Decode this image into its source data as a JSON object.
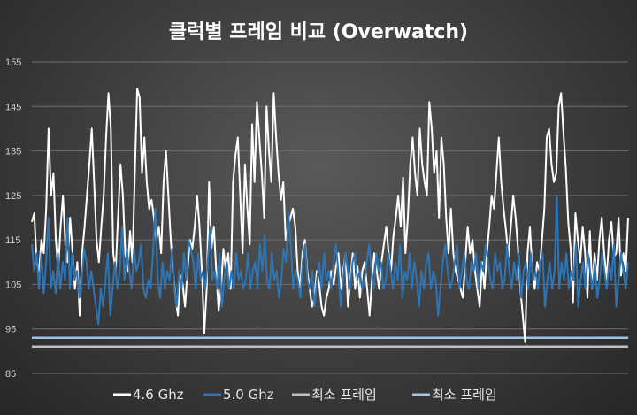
{
  "chart_data": {
    "type": "line",
    "title": "클럭별 프레임 비교 (Overwatch)",
    "xlabel": "",
    "ylabel": "",
    "ylim": [
      85,
      155
    ],
    "yticks": [
      85,
      95,
      105,
      115,
      125,
      135,
      145,
      155
    ],
    "grid": true,
    "legend_position": "bottom",
    "series": [
      {
        "name": "4.6 Ghz",
        "color": "#ffffff",
        "values": [
          119,
          121,
          110,
          108,
          115,
          112,
          122,
          140,
          125,
          130,
          115,
          108,
          118,
          125,
          114,
          110,
          120,
          112,
          104,
          110,
          98,
          112,
          118,
          125,
          132,
          140,
          128,
          115,
          110,
          118,
          125,
          138,
          148,
          140,
          112,
          108,
          120,
          132,
          125,
          112,
          108,
          117,
          110,
          130,
          149,
          147,
          130,
          138,
          128,
          122,
          124,
          120,
          115,
          118,
          112,
          128,
          135,
          125,
          115,
          108,
          102,
          98,
          107,
          105,
          100,
          108,
          115,
          113,
          118,
          125,
          118,
          108,
          94,
          104,
          128,
          113,
          118,
          108,
          99,
          104,
          113,
          108,
          112,
          104,
          128,
          134,
          138,
          125,
          112,
          132,
          122,
          114,
          141,
          128,
          146,
          138,
          130,
          120,
          145,
          135,
          128,
          148,
          138,
          130,
          124,
          128,
          115,
          118,
          120,
          122,
          118,
          108,
          104,
          112,
          115,
          108,
          104,
          100,
          102,
          108,
          105,
          100,
          98,
          102,
          104,
          108,
          105,
          109,
          112,
          104,
          108,
          112,
          100,
          106,
          112,
          104,
          109,
          102,
          108,
          110,
          104,
          98,
          106,
          112,
          108,
          104,
          110,
          114,
          118,
          112,
          108,
          116,
          120,
          125,
          118,
          129,
          112,
          120,
          132,
          138,
          130,
          125,
          140,
          132,
          128,
          125,
          146,
          140,
          130,
          135,
          120,
          138,
          132,
          120,
          112,
          122,
          112,
          108,
          106,
          104,
          102,
          110,
          118,
          112,
          115,
          108,
          104,
          100,
          110,
          104,
          112,
          118,
          125,
          122,
          130,
          138,
          128,
          122,
          117,
          111,
          118,
          125,
          120,
          113,
          104,
          98,
          92,
          112,
          118,
          108,
          104,
          110,
          108,
          115,
          122,
          138,
          140,
          132,
          128,
          130,
          145,
          148,
          139,
          131,
          119,
          113,
          101,
          121,
          115,
          110,
          118,
          112,
          102,
          117,
          104,
          112,
          106,
          115,
          120,
          112,
          106,
          115,
          119,
          111,
          112,
          120,
          107,
          112,
          108,
          120
        ],
        "note_shape": "approx"
      },
      {
        "name": "5.0 Ghz",
        "color": "#2e75b6",
        "values": [
          114,
          108,
          112,
          104,
          112,
          103,
          110,
          120,
          104,
          108,
          103,
          112,
          104,
          110,
          106,
          120,
          104,
          112,
          106,
          108,
          102,
          106,
          113,
          110,
          104,
          108,
          104,
          100,
          96,
          104,
          100,
          106,
          112,
          98,
          104,
          110,
          104,
          108,
          118,
          106,
          113,
          108,
          104,
          113,
          108,
          110,
          114,
          104,
          102,
          106,
          104,
          112,
          122,
          106,
          102,
          110,
          104,
          108,
          106,
          113,
          104,
          100,
          108,
          104,
          112,
          106,
          115,
          113,
          110,
          104,
          112,
          106,
          108,
          104,
          110,
          118,
          106,
          108,
          104,
          112,
          100,
          106,
          110,
          104,
          108,
          104,
          112,
          106,
          108,
          104,
          106,
          112,
          104,
          108,
          110,
          104,
          114,
          108,
          116,
          106,
          104,
          112,
          106,
          108,
          102,
          106,
          113,
          110,
          121,
          114,
          104,
          108,
          106,
          102,
          110,
          114,
          106,
          104,
          108,
          100,
          106,
          110,
          104,
          112,
          106,
          108,
          104,
          110,
          114,
          108,
          100,
          106,
          112,
          108,
          104,
          110,
          112,
          106,
          108,
          104,
          106,
          110,
          114,
          108,
          104,
          112,
          108,
          110,
          104,
          106,
          112,
          108,
          104,
          110,
          106,
          114,
          102,
          108,
          106,
          112,
          104,
          110,
          106,
          100,
          108,
          104,
          110,
          112,
          104,
          108,
          106,
          98,
          104,
          110,
          114,
          108,
          104,
          106,
          110,
          114,
          104,
          108,
          112,
          106,
          104,
          110,
          108,
          112,
          104,
          110,
          108,
          114,
          110,
          106,
          104,
          112,
          108,
          110,
          104,
          106,
          114,
          108,
          104,
          110,
          106,
          112,
          102,
          108,
          110,
          104,
          112,
          106,
          108,
          104,
          110,
          112,
          100,
          106,
          110,
          104,
          108,
          125,
          104,
          110,
          106,
          112,
          104,
          108,
          106,
          114,
          100,
          106,
          110,
          104,
          112,
          108,
          104,
          110,
          102,
          106,
          112,
          108,
          104,
          110,
          106,
          114,
          100,
          106,
          112,
          108,
          104,
          110
        ],
        "note_shape": "approx"
      },
      {
        "name": "최소 프레임",
        "color": "#bfbfbf",
        "values": [
          91
        ]
      },
      {
        "name": "최소 프레임",
        "color": "#9dc3e6",
        "values": [
          93
        ]
      }
    ]
  }
}
